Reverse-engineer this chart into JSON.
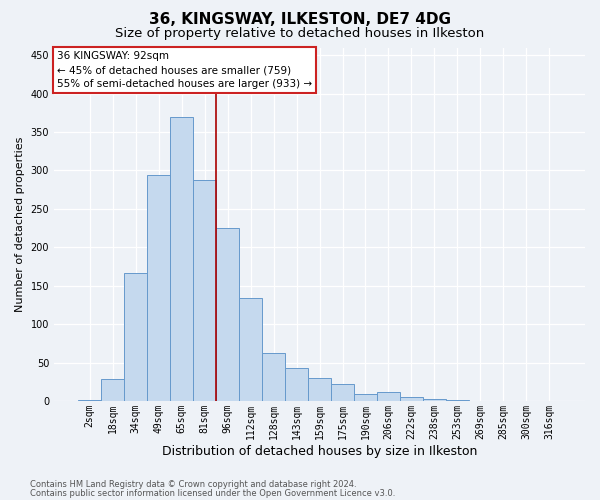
{
  "title1": "36, KINGSWAY, ILKESTON, DE7 4DG",
  "title2": "Size of property relative to detached houses in Ilkeston",
  "xlabel": "Distribution of detached houses by size in Ilkeston",
  "ylabel": "Number of detached properties",
  "footer1": "Contains HM Land Registry data © Crown copyright and database right 2024.",
  "footer2": "Contains public sector information licensed under the Open Government Licence v3.0.",
  "categories": [
    "2sqm",
    "18sqm",
    "34sqm",
    "49sqm",
    "65sqm",
    "81sqm",
    "96sqm",
    "112sqm",
    "128sqm",
    "143sqm",
    "159sqm",
    "175sqm",
    "190sqm",
    "206sqm",
    "222sqm",
    "238sqm",
    "253sqm",
    "269sqm",
    "285sqm",
    "300sqm",
    "316sqm"
  ],
  "values": [
    1,
    28,
    167,
    294,
    370,
    288,
    225,
    134,
    62,
    43,
    30,
    22,
    9,
    11,
    5,
    2,
    1,
    0,
    0,
    0,
    0
  ],
  "bar_color": "#c5d9ee",
  "bar_edge_color": "#6699cc",
  "annotation_line1": "36 KINGSWAY: 92sqm",
  "annotation_line2": "← 45% of detached houses are smaller (759)",
  "annotation_line3": "55% of semi-detached houses are larger (933) →",
  "vline_index": 5.5,
  "vline_color": "#aa0000",
  "annotation_box_facecolor": "#ffffff",
  "annotation_box_edgecolor": "#cc2222",
  "ylim": [
    0,
    460
  ],
  "yticks": [
    0,
    50,
    100,
    150,
    200,
    250,
    300,
    350,
    400,
    450
  ],
  "bg_color": "#eef2f7",
  "title1_fontsize": 11,
  "title2_fontsize": 9.5,
  "xlabel_fontsize": 9,
  "ylabel_fontsize": 8,
  "tick_fontsize": 7,
  "footer_fontsize": 6,
  "annotation_fontsize": 7.5
}
